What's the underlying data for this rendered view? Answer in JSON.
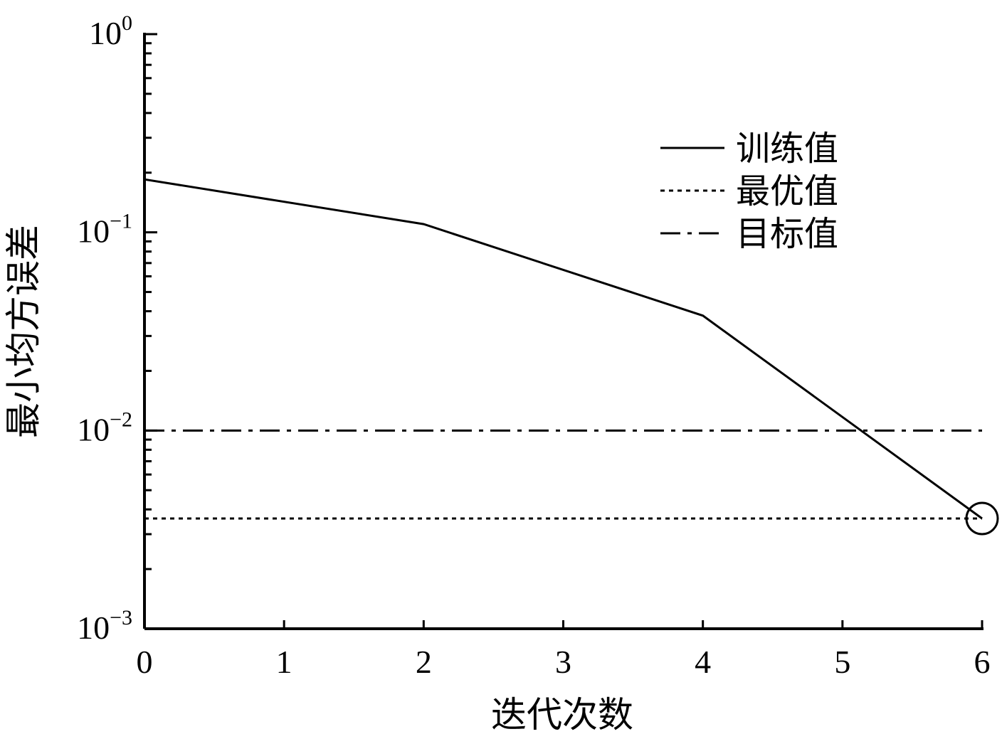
{
  "chart_data": {
    "type": "line",
    "title": "",
    "xlabel": "迭代次数",
    "ylabel": "最小均方误差",
    "xlim": [
      0,
      6
    ],
    "ylim": [
      0.001,
      1
    ],
    "yscale": "log",
    "x_ticks": [
      "0",
      "1",
      "2",
      "3",
      "4",
      "5",
      "6"
    ],
    "y_ticks": [
      {
        "base": "10",
        "exp": "0",
        "value": 1
      },
      {
        "base": "10",
        "exp": "−1",
        "value": 0.1
      },
      {
        "base": "10",
        "exp": "−2",
        "value": 0.01
      },
      {
        "base": "10",
        "exp": "−3",
        "value": 0.001
      }
    ],
    "grid": false,
    "legend_position": "top-right",
    "series": [
      {
        "name": "训练值",
        "style": "solid",
        "x": [
          0,
          2,
          4,
          6
        ],
        "y": [
          0.185,
          0.11,
          0.038,
          0.0036
        ]
      },
      {
        "name": "最优值",
        "style": "dotted",
        "x": [
          0,
          6
        ],
        "y": [
          0.0036,
          0.0036
        ]
      },
      {
        "name": "目标值",
        "style": "dashdot",
        "x": [
          0,
          6
        ],
        "y": [
          0.01,
          0.01
        ]
      }
    ],
    "annotations": [
      {
        "type": "circle-marker",
        "x": 6,
        "y": 0.0036
      }
    ],
    "colors": {
      "line": "#000000",
      "background": "#ffffff"
    }
  }
}
